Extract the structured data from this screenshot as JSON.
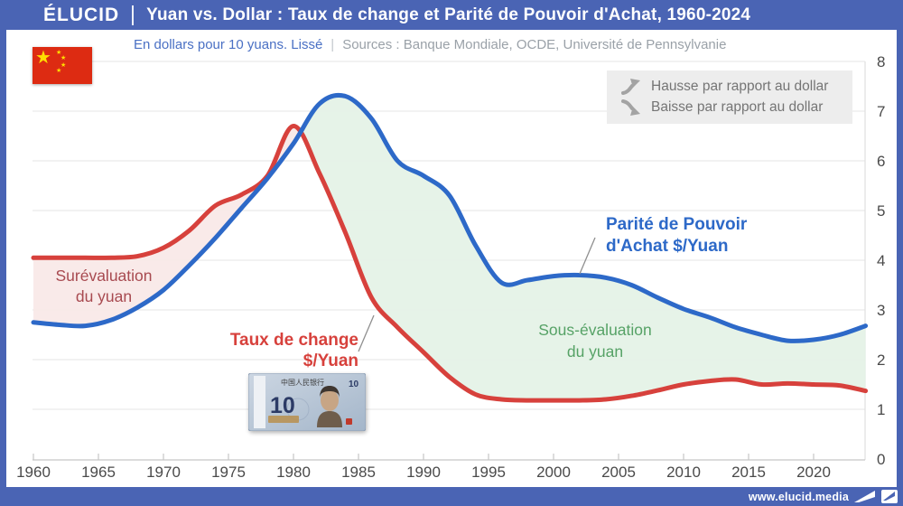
{
  "header": {
    "logo": "ÉLUCID",
    "title": "Yuan vs. Dollar : Taux de change et Parité de Pouvoir d'Achat, 1960-2024"
  },
  "subtitle": {
    "unit": "En dollars pour 10 yuans. Lissé",
    "separator": "|",
    "sources": "Sources : Banque Mondiale, OCDE, Université de Pennsylvanie"
  },
  "legend": {
    "items": [
      {
        "icon": "arrow-up-right-icon",
        "label": "Hausse par rapport au dollar"
      },
      {
        "icon": "arrow-down-right-icon",
        "label": "Baisse par rapport au dollar"
      }
    ]
  },
  "annotations": {
    "overvaluation": {
      "line1": "Surévaluation",
      "line2": "du yuan",
      "color": "#a84a50"
    },
    "undervaluation": {
      "line1": "Sous-évaluation",
      "line2": "du yuan",
      "color": "#56a266"
    },
    "exchange": {
      "line1": "Taux de change",
      "line2": "$/Yuan",
      "color": "#d7413c"
    },
    "ppp": {
      "line1": "Parité de Pouvoir",
      "line2": "d'Achat $/Yuan",
      "color": "#2d69c8"
    }
  },
  "banknote": {
    "bank_name": "中国人民银行",
    "denomination": "10"
  },
  "footer": {
    "url": "www.elucid.media"
  },
  "colors": {
    "accent": "#4a64b4",
    "line_red": "#d7413c",
    "line_blue": "#2d69c8",
    "fill_pink": "#f9e8e7",
    "fill_green": "#e4f2e6",
    "flag_red": "#dd2b12"
  },
  "chart_data": {
    "type": "line",
    "title": "Yuan vs. Dollar : Taux de change et Parité de Pouvoir d'Achat, 1960-2024",
    "unit_note": "En dollars pour 10 yuans. Lissé",
    "x": [
      1960,
      1962,
      1964,
      1966,
      1968,
      1970,
      1972,
      1974,
      1976,
      1978,
      1980,
      1982,
      1984,
      1986,
      1988,
      1990,
      1992,
      1994,
      1996,
      1998,
      2000,
      2002,
      2004,
      2006,
      2008,
      2010,
      2012,
      2014,
      2016,
      2018,
      2020,
      2022,
      2024
    ],
    "series": [
      {
        "name": "Taux de change $/Yuan",
        "color": "#d7413c",
        "values": [
          4.05,
          4.05,
          4.05,
          4.05,
          4.08,
          4.25,
          4.6,
          5.1,
          5.32,
          5.7,
          6.7,
          5.75,
          4.55,
          3.25,
          2.65,
          2.15,
          1.65,
          1.3,
          1.2,
          1.18,
          1.18,
          1.18,
          1.2,
          1.27,
          1.38,
          1.5,
          1.57,
          1.6,
          1.5,
          1.52,
          1.5,
          1.48,
          1.37
        ]
      },
      {
        "name": "Parité de Pouvoir d'Achat $/Yuan",
        "color": "#2d69c8",
        "values": [
          2.75,
          2.7,
          2.68,
          2.8,
          3.05,
          3.4,
          3.9,
          4.45,
          5.05,
          5.65,
          6.35,
          7.15,
          7.3,
          6.85,
          6.0,
          5.7,
          5.3,
          4.3,
          3.55,
          3.6,
          3.68,
          3.7,
          3.65,
          3.5,
          3.25,
          3.02,
          2.85,
          2.65,
          2.5,
          2.38,
          2.4,
          2.5,
          2.68
        ]
      }
    ],
    "xticks": [
      1960,
      1965,
      1970,
      1975,
      1980,
      1985,
      1990,
      1995,
      2000,
      2005,
      2010,
      2015,
      2020
    ],
    "yticks": [
      0,
      1,
      2,
      3,
      4,
      5,
      6,
      7,
      8
    ],
    "xlim": [
      1960,
      2024
    ],
    "ylim": [
      0,
      8
    ],
    "grid": "horizontal",
    "legend_position": "top-right",
    "fills": {
      "overvaluation": "#f9e8e7",
      "undervaluation": "#e4f2e6"
    }
  }
}
